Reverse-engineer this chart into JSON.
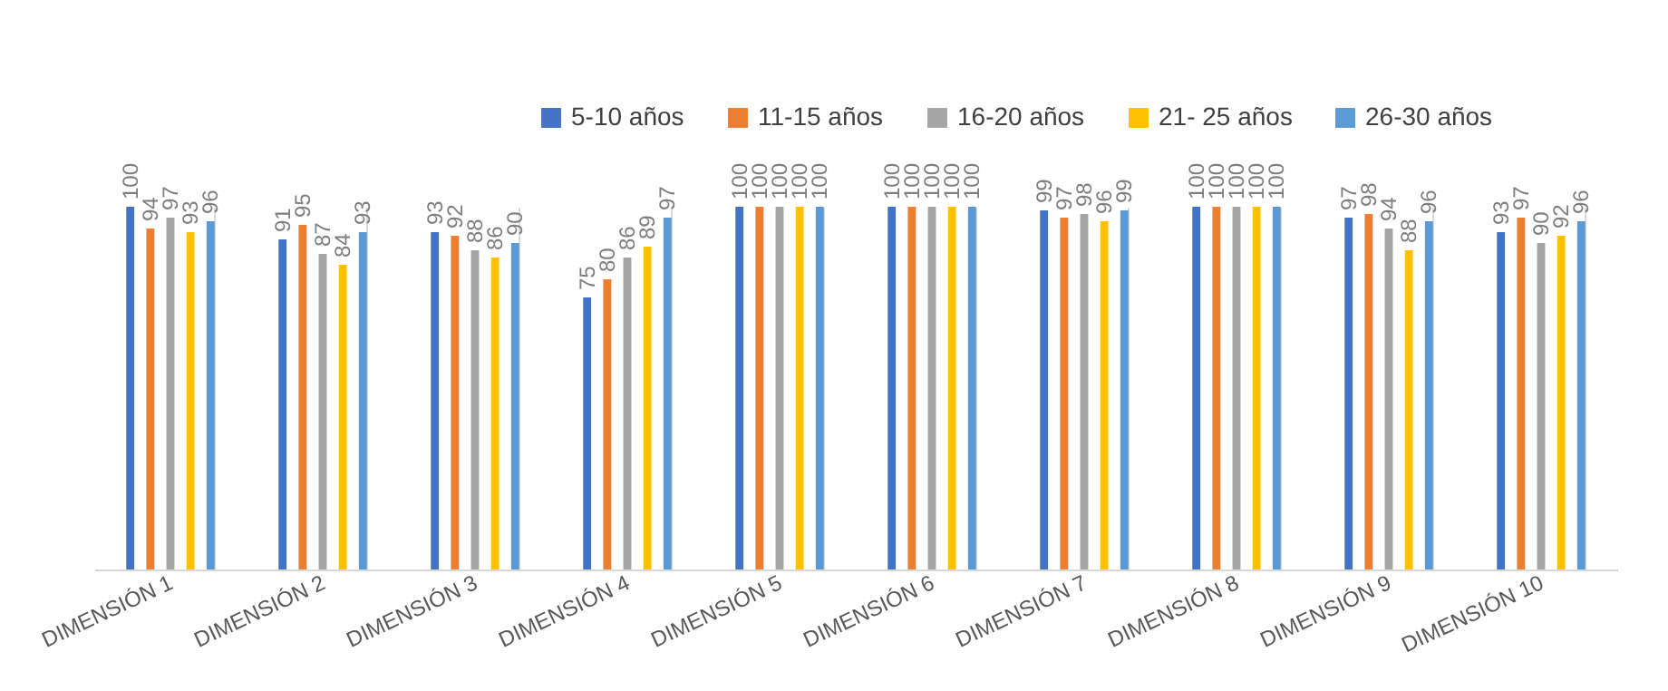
{
  "chart_data": {
    "type": "bar",
    "categories": [
      "DIMENSIÓN 1",
      "DIMENSIÓN 2",
      "DIMENSIÓN 3",
      "DIMENSIÓN 4",
      "DIMENSIÓN 5",
      "DIMENSIÓN 6",
      "DIMENSIÓN 7",
      "DIMENSIÓN 8",
      "DIMENSIÓN 9",
      "DIMENSIÓN 10"
    ],
    "series": [
      {
        "name": "5-10 años",
        "color": "#4472c4",
        "values": [
          100,
          91,
          93,
          75,
          100,
          100,
          99,
          100,
          97,
          93
        ]
      },
      {
        "name": "11-15 años",
        "color": "#ed7d31",
        "values": [
          94,
          95,
          92,
          80,
          100,
          100,
          97,
          100,
          98,
          97
        ]
      },
      {
        "name": "16-20 años",
        "color": "#a5a5a5",
        "values": [
          97,
          87,
          88,
          86,
          100,
          100,
          98,
          100,
          94,
          90
        ]
      },
      {
        "name": "21- 25 años",
        "color": "#ffc000",
        "values": [
          93,
          84,
          86,
          89,
          100,
          100,
          96,
          100,
          88,
          92
        ]
      },
      {
        "name": "26-30 años",
        "color": "#5b9bd5",
        "values": [
          96,
          93,
          90,
          97,
          100,
          100,
          99,
          100,
          96,
          96
        ]
      }
    ],
    "data_labels": true,
    "legend": "top"
  }
}
